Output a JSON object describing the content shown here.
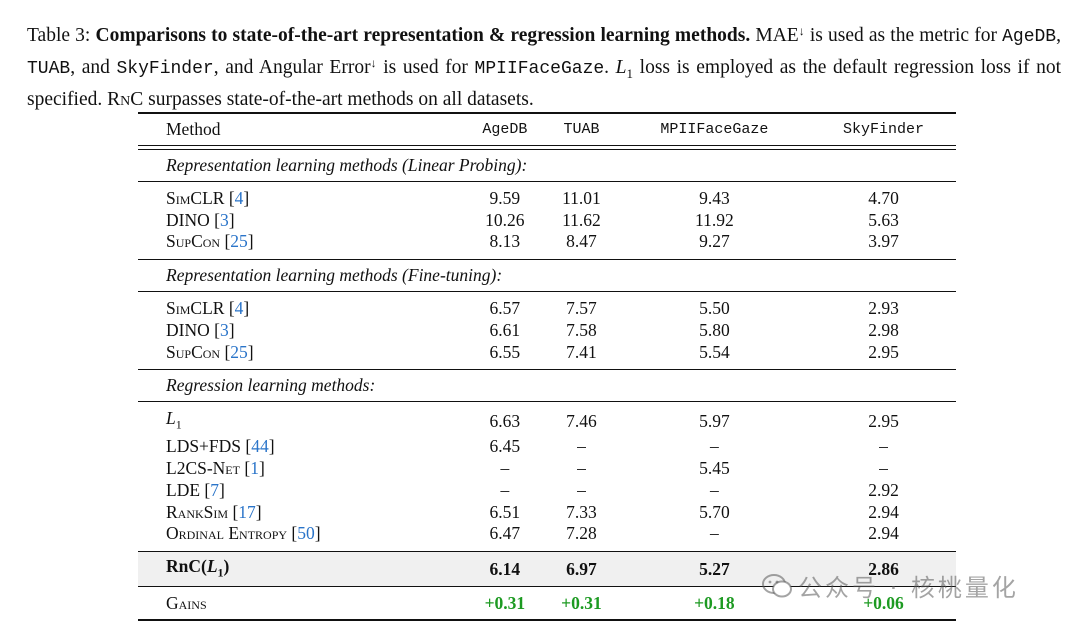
{
  "caption": {
    "label": "Table 3:",
    "title": "Comparisons to state-of-the-art representation & regression learning methods.",
    "t1": " MAE",
    "down": "↓",
    "t2": " is used as the metric for ",
    "m1": "AgeDB",
    "t3": ", ",
    "m2": "TUAB",
    "t4": ", and ",
    "m3": "SkyFinder",
    "t5": ", and Angular Error",
    "t6": " is used for ",
    "m4": "MPIIFaceGaze",
    "t7": ". ",
    "l1": "L",
    "l1sub": "1",
    "t8": " loss is employed as the default regression loss if not specified. R",
    "t8b": "n",
    "t8c": "C",
    "t9": " surpasses state-of-the-art methods on all datasets."
  },
  "header": {
    "method": "Method",
    "c1": "AgeDB",
    "c2": "TUAB",
    "c3": "MPIIFaceGaze",
    "c4": "SkyFinder"
  },
  "sections": {
    "s1": "Representation learning methods (Linear Probing):",
    "s2": "Representation learning methods (Fine-tuning):",
    "s3": "Regression learning methods:"
  },
  "lp": [
    {
      "name": "SimCLR",
      "ref": "4",
      "v": [
        "9.59",
        "11.01",
        "9.43",
        "4.70"
      ]
    },
    {
      "name": "DINO",
      "ref": "3",
      "v": [
        "10.26",
        "11.62",
        "11.92",
        "5.63"
      ]
    },
    {
      "name": "SupCon",
      "ref": "25",
      "v": [
        "8.13",
        "8.47",
        "9.27",
        "3.97"
      ]
    }
  ],
  "ft": [
    {
      "name": "SimCLR",
      "ref": "4",
      "v": [
        "6.57",
        "7.57",
        "5.50",
        "2.93"
      ]
    },
    {
      "name": "DINO",
      "ref": "3",
      "v": [
        "6.61",
        "7.58",
        "5.80",
        "2.98"
      ]
    },
    {
      "name": "SupCon",
      "ref": "25",
      "v": [
        "6.55",
        "7.41",
        "5.54",
        "2.95"
      ]
    }
  ],
  "reg": [
    {
      "name": "L",
      "sub": "1",
      "ref": "",
      "v": [
        "6.63",
        "7.46",
        "5.97",
        "2.95"
      ]
    },
    {
      "name": "LDS+FDS",
      "ref": "44",
      "v": [
        "6.45",
        "–",
        "–",
        "–"
      ]
    },
    {
      "name": "L2CS-Net",
      "ref": "1",
      "v": [
        "–",
        "–",
        "5.45",
        "–"
      ]
    },
    {
      "name": "LDE",
      "ref": "7",
      "v": [
        "–",
        "–",
        "–",
        "2.92"
      ]
    },
    {
      "name": "RankSim",
      "ref": "17",
      "v": [
        "6.51",
        "7.33",
        "5.70",
        "2.94"
      ]
    },
    {
      "name": "Ordinal Entropy",
      "ref": "50",
      "v": [
        "6.47",
        "7.28",
        "–",
        "2.94"
      ]
    }
  ],
  "ours": {
    "name": "RnC(",
    "l": "L",
    "sub": "1",
    "close": ")",
    "v": [
      "6.14",
      "6.97",
      "5.27",
      "2.86"
    ]
  },
  "gains": {
    "name": "Gains",
    "v": [
      "+0.31",
      "+0.31",
      "+0.18",
      "+0.06"
    ]
  },
  "watermark": "公众号 · 核桃量化"
}
